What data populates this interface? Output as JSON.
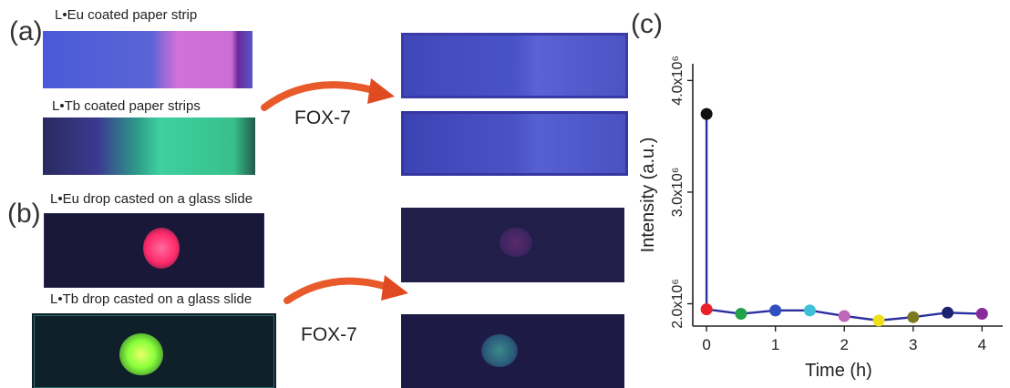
{
  "panels": {
    "a": {
      "label": "(a)",
      "eu_caption": "L•Eu coated paper strip",
      "tb_caption": "L•Tb coated paper strips",
      "reagent": "FOX-7"
    },
    "b": {
      "label": "(b)",
      "eu_caption": "L•Eu drop casted on a glass slide",
      "tb_caption": "L•Tb drop casted on a glass slide",
      "reagent": "FOX-7"
    },
    "c": {
      "label": "(c)"
    }
  },
  "colors": {
    "line": "#2b2f9e",
    "marker_colors": [
      "#111111",
      "#e8202a",
      "#23a04a",
      "#2f4fc0",
      "#3fc0d8",
      "#c066b8",
      "#f0e01a",
      "#7a7a20",
      "#1b2370",
      "#8a2a9a"
    ]
  },
  "chart_data": {
    "type": "line",
    "xlabel": "Time (h)",
    "ylabel": "Intensity (a.u.)",
    "xlim": [
      -0.2,
      4.3
    ],
    "ylim": [
      1.8,
      4.15
    ],
    "x_ticks": [
      "0",
      "1",
      "2",
      "3",
      "4"
    ],
    "y_ticks": [
      "2.0x10⁶",
      "3.0x10⁶",
      "4.0x10⁶"
    ],
    "y_tick_values": [
      2.0,
      3.0,
      4.0
    ],
    "x_tick_values": [
      0,
      1,
      2,
      3,
      4
    ],
    "series": [
      {
        "x": [
          0,
          0,
          0.5,
          1,
          1.5,
          2,
          2.5,
          3,
          3.5,
          4
        ],
        "values": [
          3.7,
          1.95,
          1.91,
          1.94,
          1.94,
          1.89,
          1.85,
          1.88,
          1.92,
          1.91
        ]
      }
    ],
    "grid": false
  }
}
